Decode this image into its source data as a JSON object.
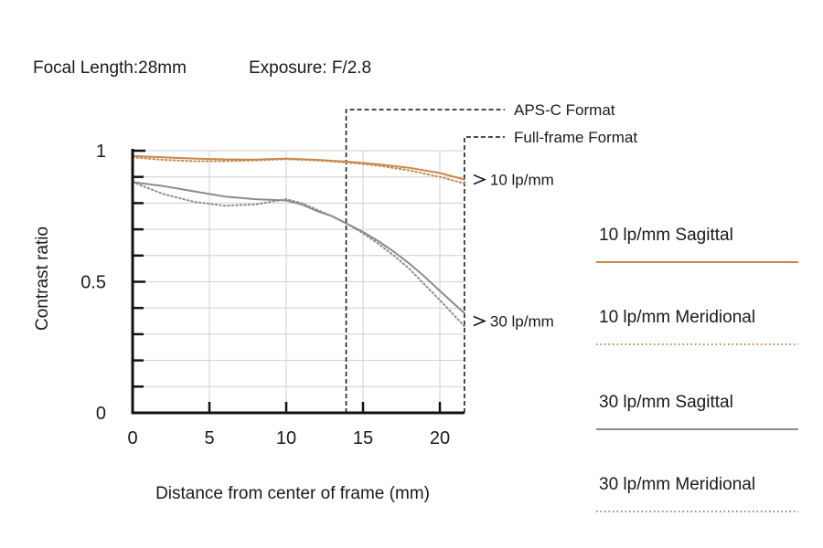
{
  "header": {
    "focal_length": "Focal Length:28mm",
    "exposure": "Exposure: F/2.8"
  },
  "chart_data": {
    "type": "line",
    "xlabel": "Distance from center of frame (mm)",
    "ylabel": "Contrast ratio",
    "xlim": [
      0,
      21.6
    ],
    "ylim": [
      0,
      1
    ],
    "x_ticks": [
      0,
      5,
      10,
      15,
      20
    ],
    "y_tick_labels": [
      {
        "value": 0,
        "label": "0"
      },
      {
        "value": 0.5,
        "label": "0.5"
      },
      {
        "value": 1,
        "label": "1"
      }
    ],
    "y_minor_ticks": [
      0.1,
      0.2,
      0.3,
      0.4,
      0.6,
      0.7,
      0.8,
      0.9
    ],
    "grid": true,
    "format_markers": [
      {
        "label": "APS-C Format",
        "x": 13.9
      },
      {
        "label": "Full-frame Format",
        "x": 21.6
      }
    ],
    "curve_labels": [
      {
        "label": "10 lp/mm",
        "y": 0.89
      },
      {
        "label": "30 lp/mm",
        "y": 0.35
      }
    ],
    "legend_position": "right",
    "series": [
      {
        "name": "10 lp/mm Sagittal",
        "color": "#c9874e",
        "style": "solid",
        "x": [
          0,
          2,
          4,
          6,
          8,
          10,
          12,
          14,
          16,
          18,
          20,
          21.6
        ],
        "y": [
          0.98,
          0.975,
          0.97,
          0.967,
          0.966,
          0.97,
          0.965,
          0.958,
          0.948,
          0.935,
          0.915,
          0.89
        ]
      },
      {
        "name": "10 lp/mm Meridional",
        "color": "#c9874e",
        "style": "dotted",
        "x": [
          0,
          2,
          4,
          6,
          8,
          10,
          12,
          14,
          16,
          18,
          20,
          21.6
        ],
        "y": [
          0.975,
          0.965,
          0.96,
          0.96,
          0.963,
          0.968,
          0.963,
          0.955,
          0.943,
          0.925,
          0.9,
          0.875
        ]
      },
      {
        "name": "30 lp/mm Sagittal",
        "color": "#8c8c8c",
        "style": "solid",
        "x": [
          0,
          2,
          4,
          6,
          8,
          10,
          11,
          12,
          13,
          14,
          15,
          16,
          17,
          18,
          19,
          20,
          21.6
        ],
        "y": [
          0.88,
          0.865,
          0.845,
          0.825,
          0.815,
          0.81,
          0.795,
          0.77,
          0.75,
          0.72,
          0.69,
          0.655,
          0.615,
          0.57,
          0.52,
          0.465,
          0.38
        ]
      },
      {
        "name": "30 lp/mm Meridional",
        "color": "#8c8c8c",
        "style": "dotted",
        "x": [
          0,
          2,
          4,
          6,
          8,
          10,
          11,
          12,
          13,
          14,
          15,
          16,
          17,
          18,
          19,
          20,
          21.6
        ],
        "y": [
          0.88,
          0.835,
          0.805,
          0.79,
          0.795,
          0.815,
          0.8,
          0.775,
          0.75,
          0.72,
          0.685,
          0.645,
          0.6,
          0.55,
          0.49,
          0.43,
          0.33
        ]
      }
    ]
  }
}
